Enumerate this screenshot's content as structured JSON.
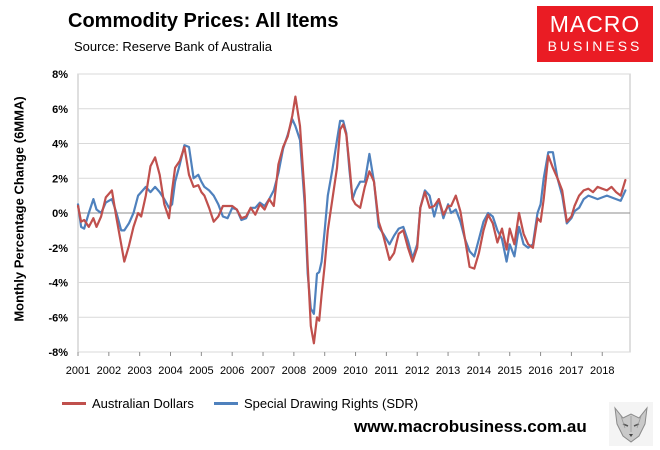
{
  "header": {
    "title": "Commodity Prices: All Items",
    "source": "Source:  Reserve Bank of Australia"
  },
  "logo": {
    "line1": "MACRO",
    "line2": "BUSINESS"
  },
  "footer": {
    "url": "www.macrobusiness.com.au"
  },
  "colors": {
    "aud": "#c0504d",
    "sdr": "#4f81bd",
    "logo_red": "#ea1c24"
  },
  "chart_data": {
    "type": "line",
    "title": "Commodity Prices: All Items",
    "xlabel": "",
    "ylabel": "Monthly Percentage Change (6MMA)",
    "xlim": [
      2001,
      2018.9
    ],
    "ylim": [
      -8,
      8
    ],
    "grid": "horizontal",
    "legend_position": "bottom",
    "x_ticks": [
      "2001",
      "2002",
      "2003",
      "2004",
      "2005",
      "2006",
      "2007",
      "2008",
      "2009",
      "2010",
      "2011",
      "2012",
      "2013",
      "2014",
      "2015",
      "2016",
      "2017",
      "2018"
    ],
    "y_ticks": [
      8,
      6,
      4,
      2,
      0,
      -2,
      -4,
      -6,
      -8
    ],
    "y_tick_labels": [
      "8%",
      "6%",
      "4%",
      "2%",
      "0%",
      "-2%",
      "-4%",
      "-6%",
      "-8%"
    ],
    "series": [
      {
        "name": "Australian Dollars",
        "color": "#c0504d",
        "x": [
          2001.0,
          2001.1,
          2001.2,
          2001.35,
          2001.5,
          2001.6,
          2001.75,
          2001.9,
          2002.1,
          2002.25,
          2002.4,
          2002.5,
          2002.65,
          2002.8,
          2002.95,
          2003.05,
          2003.2,
          2003.35,
          2003.5,
          2003.65,
          2003.8,
          2003.95,
          2004.05,
          2004.15,
          2004.3,
          2004.45,
          2004.6,
          2004.75,
          2004.9,
          2005.0,
          2005.1,
          2005.25,
          2005.4,
          2005.55,
          2005.7,
          2005.85,
          2006.0,
          2006.15,
          2006.3,
          2006.45,
          2006.6,
          2006.75,
          2006.9,
          2007.05,
          2007.2,
          2007.35,
          2007.5,
          2007.65,
          2007.8,
          2007.95,
          2008.05,
          2008.2,
          2008.35,
          2008.45,
          2008.55,
          2008.65,
          2008.75,
          2008.82,
          2008.9,
          2009.0,
          2009.1,
          2009.25,
          2009.4,
          2009.5,
          2009.6,
          2009.7,
          2009.8,
          2009.9,
          2010.0,
          2010.15,
          2010.3,
          2010.45,
          2010.6,
          2010.75,
          2010.9,
          2011.0,
          2011.1,
          2011.25,
          2011.4,
          2011.55,
          2011.7,
          2011.85,
          2012.0,
          2012.1,
          2012.25,
          2012.4,
          2012.55,
          2012.7,
          2012.85,
          2013.0,
          2013.1,
          2013.25,
          2013.4,
          2013.55,
          2013.7,
          2013.85,
          2014.0,
          2014.15,
          2014.3,
          2014.45,
          2014.6,
          2014.75,
          2014.9,
          2015.0,
          2015.15,
          2015.3,
          2015.45,
          2015.6,
          2015.75,
          2015.9,
          2016.0,
          2016.1,
          2016.25,
          2016.4,
          2016.55,
          2016.7,
          2016.85,
          2017.0,
          2017.1,
          2017.25,
          2017.4,
          2017.55,
          2017.7,
          2017.85,
          2018.0,
          2018.15,
          2018.3,
          2018.45,
          2018.6,
          2018.75
        ],
        "y": [
          0.4,
          -0.5,
          -0.4,
          -0.8,
          -0.3,
          -0.8,
          -0.2,
          0.9,
          1.3,
          -0.3,
          -1.8,
          -2.8,
          -1.9,
          -0.8,
          0.0,
          -0.2,
          1.0,
          2.7,
          3.2,
          2.2,
          0.5,
          -0.3,
          1.3,
          2.6,
          3.0,
          3.8,
          2.2,
          1.5,
          1.6,
          1.2,
          1.0,
          0.3,
          -0.5,
          -0.2,
          0.4,
          0.4,
          0.4,
          0.2,
          -0.3,
          -0.2,
          0.3,
          -0.1,
          0.5,
          0.2,
          0.8,
          0.4,
          2.8,
          3.8,
          4.4,
          5.6,
          6.7,
          5.0,
          1.0,
          -3.0,
          -6.5,
          -7.5,
          -6.0,
          -6.2,
          -4.7,
          -3.0,
          -1.0,
          0.8,
          2.6,
          4.8,
          5.1,
          4.5,
          2.8,
          0.8,
          0.5,
          0.3,
          1.5,
          2.4,
          1.8,
          -0.5,
          -1.3,
          -2.0,
          -2.7,
          -2.3,
          -1.2,
          -1.0,
          -2.0,
          -2.8,
          -2.0,
          0.3,
          1.2,
          0.3,
          0.4,
          0.8,
          -0.1,
          0.4,
          0.4,
          1.0,
          0.1,
          -1.5,
          -3.1,
          -3.2,
          -2.3,
          -1.0,
          -0.1,
          -0.6,
          -1.7,
          -0.9,
          -2.1,
          -0.9,
          -1.8,
          0.0,
          -1.2,
          -1.8,
          -2.0,
          -0.3,
          -0.5,
          0.8,
          3.3,
          2.6,
          2.0,
          1.3,
          -0.5,
          -0.2,
          0.4,
          1.0,
          1.3,
          1.4,
          1.2,
          1.5,
          1.4,
          1.3,
          1.5,
          1.2,
          1.0,
          1.9
        ]
      },
      {
        "name": "Special Drawing Rights (SDR)",
        "color": "#4f81bd",
        "x": [
          2001.0,
          2001.1,
          2001.2,
          2001.35,
          2001.5,
          2001.6,
          2001.75,
          2001.9,
          2002.1,
          2002.25,
          2002.4,
          2002.5,
          2002.65,
          2002.8,
          2002.95,
          2003.05,
          2003.2,
          2003.35,
          2003.5,
          2003.65,
          2003.8,
          2003.95,
          2004.05,
          2004.15,
          2004.3,
          2004.45,
          2004.6,
          2004.75,
          2004.9,
          2005.0,
          2005.1,
          2005.25,
          2005.4,
          2005.55,
          2005.7,
          2005.85,
          2006.0,
          2006.15,
          2006.3,
          2006.45,
          2006.6,
          2006.75,
          2006.9,
          2007.05,
          2007.2,
          2007.35,
          2007.5,
          2007.65,
          2007.8,
          2007.95,
          2008.05,
          2008.2,
          2008.35,
          2008.45,
          2008.55,
          2008.65,
          2008.75,
          2008.82,
          2008.9,
          2009.0,
          2009.1,
          2009.25,
          2009.4,
          2009.5,
          2009.6,
          2009.7,
          2009.8,
          2009.9,
          2010.0,
          2010.15,
          2010.3,
          2010.45,
          2010.6,
          2010.75,
          2010.9,
          2011.0,
          2011.1,
          2011.25,
          2011.4,
          2011.55,
          2011.7,
          2011.85,
          2012.0,
          2012.1,
          2012.25,
          2012.4,
          2012.55,
          2012.7,
          2012.85,
          2013.0,
          2013.1,
          2013.25,
          2013.4,
          2013.55,
          2013.7,
          2013.85,
          2014.0,
          2014.15,
          2014.3,
          2014.45,
          2014.6,
          2014.75,
          2014.9,
          2015.0,
          2015.15,
          2015.3,
          2015.45,
          2015.6,
          2015.75,
          2015.9,
          2016.0,
          2016.1,
          2016.25,
          2016.4,
          2016.55,
          2016.7,
          2016.85,
          2017.0,
          2017.1,
          2017.25,
          2017.4,
          2017.55,
          2017.7,
          2017.85,
          2018.0,
          2018.15,
          2018.3,
          2018.45,
          2018.6,
          2018.75
        ],
        "y": [
          0.5,
          -0.8,
          -0.9,
          0.0,
          0.8,
          0.2,
          0.0,
          0.6,
          0.8,
          0.0,
          -1.0,
          -1.0,
          -0.6,
          0.0,
          1.0,
          1.2,
          1.5,
          1.2,
          1.5,
          1.2,
          0.8,
          0.3,
          0.5,
          1.8,
          2.8,
          3.9,
          3.8,
          2.0,
          2.2,
          1.8,
          1.5,
          1.3,
          1.0,
          0.5,
          -0.2,
          -0.3,
          0.3,
          0.2,
          -0.4,
          -0.3,
          0.3,
          0.3,
          0.6,
          0.4,
          0.8,
          1.3,
          2.3,
          3.7,
          4.5,
          5.4,
          5.0,
          4.2,
          0.5,
          -3.5,
          -5.5,
          -5.8,
          -3.5,
          -3.4,
          -2.8,
          -1.0,
          1.0,
          2.5,
          4.2,
          5.3,
          5.3,
          4.6,
          2.5,
          0.8,
          1.3,
          1.8,
          1.8,
          3.4,
          1.8,
          -0.8,
          -1.2,
          -1.5,
          -1.8,
          -1.3,
          -0.9,
          -0.8,
          -1.6,
          -2.6,
          -1.8,
          0.3,
          1.3,
          1.0,
          -0.2,
          0.8,
          -0.3,
          0.5,
          0.0,
          0.2,
          -0.5,
          -1.5,
          -2.2,
          -2.5,
          -1.5,
          -0.5,
          0.0,
          -0.2,
          -1.0,
          -1.5,
          -2.8,
          -1.8,
          -2.5,
          -0.8,
          -1.8,
          -2.0,
          -1.8,
          0.0,
          0.5,
          2.0,
          3.5,
          3.5,
          2.0,
          1.0,
          -0.6,
          -0.3,
          0.1,
          0.3,
          0.8,
          1.0,
          0.9,
          0.8,
          0.9,
          1.0,
          0.9,
          0.8,
          0.7,
          1.3
        ]
      }
    ]
  }
}
